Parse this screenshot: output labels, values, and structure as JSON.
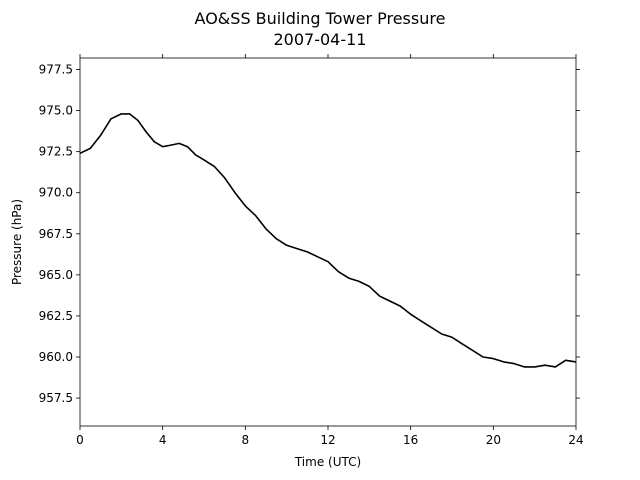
{
  "chart_data": {
    "type": "line",
    "title": "AO&SS Building Tower Pressure",
    "subtitle": "2007-04-11",
    "xlabel": "Time (UTC)",
    "ylabel": "Pressure (hPa)",
    "xlim": [
      0,
      24
    ],
    "ylim": [
      955.8,
      978.2
    ],
    "x_ticks": [
      0,
      4,
      8,
      12,
      16,
      20,
      24
    ],
    "x_tick_labels": [
      "0",
      "4",
      "8",
      "12",
      "16",
      "20",
      "24"
    ],
    "y_ticks": [
      957.5,
      960.0,
      962.5,
      965.0,
      967.5,
      970.0,
      972.5,
      975.0,
      977.5
    ],
    "y_tick_labels": [
      "957.5",
      "960.0",
      "962.5",
      "965.0",
      "967.5",
      "970.0",
      "972.5",
      "975.0",
      "977.5"
    ],
    "grid": false,
    "series": [
      {
        "color": "#000000",
        "x": [
          0,
          0.5,
          1.0,
          1.5,
          2.0,
          2.4,
          2.8,
          3.2,
          3.6,
          4.0,
          4.4,
          4.8,
          5.2,
          5.6,
          6.0,
          6.5,
          7.0,
          7.5,
          8.0,
          8.5,
          9.0,
          9.5,
          10.0,
          10.5,
          11.0,
          11.5,
          12.0,
          12.5,
          13.0,
          13.5,
          14.0,
          14.5,
          15.0,
          15.5,
          16.0,
          16.5,
          17.0,
          17.5,
          18.0,
          18.5,
          19.0,
          19.5,
          20.0,
          20.5,
          21.0,
          21.5,
          22.0,
          22.5,
          23.0,
          23.5,
          24.0
        ],
        "y": [
          972.4,
          972.7,
          973.5,
          974.5,
          974.8,
          974.8,
          974.4,
          973.7,
          973.1,
          972.8,
          972.9,
          973.0,
          972.8,
          972.3,
          972.0,
          971.6,
          970.9,
          970.0,
          969.2,
          968.6,
          967.8,
          967.2,
          966.8,
          966.6,
          966.4,
          966.1,
          965.8,
          965.2,
          964.8,
          964.6,
          964.3,
          963.7,
          963.4,
          963.1,
          962.6,
          962.2,
          961.8,
          961.4,
          961.2,
          960.8,
          960.4,
          960.0,
          959.9,
          959.7,
          959.6,
          959.4,
          959.4,
          959.5,
          959.4,
          959.8,
          959.7
        ]
      }
    ]
  }
}
